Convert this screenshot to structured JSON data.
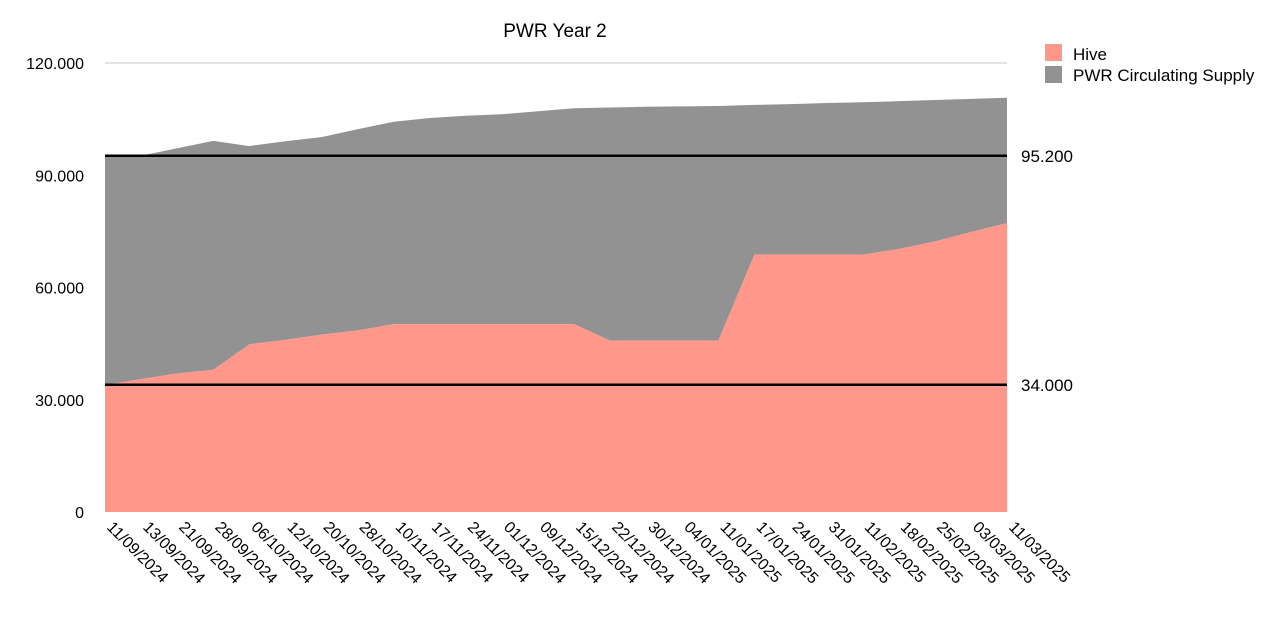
{
  "chart_data": {
    "type": "area",
    "stacked": true,
    "title": "PWR Year 2",
    "xlabel": "",
    "ylabel": "",
    "ylim": [
      0,
      120000
    ],
    "yticks": [
      0,
      30000,
      60000,
      90000,
      120000
    ],
    "ytick_labels": [
      "0",
      "30.000",
      "60.000",
      "90.000",
      "120.000"
    ],
    "x": [
      "11/09/2024",
      "13/09/2024",
      "21/09/2024",
      "28/09/2024",
      "06/10/2024",
      "12/10/2024",
      "20/10/2024",
      "28/10/2024",
      "10/11/2024",
      "17/11/2024",
      "24/11/2024",
      "01/12/2024",
      "09/12/2024",
      "15/12/2024",
      "22/12/2024",
      "30/12/2024",
      "04/01/2025",
      "11/01/2025",
      "17/01/2025",
      "24/01/2025",
      "31/01/2025",
      "11/02/2025",
      "18/02/2025",
      "25/02/2025",
      "03/03/2025",
      "11/03/2025"
    ],
    "series": [
      {
        "name": "Hive",
        "color": "#ff978a",
        "values": [
          34000,
          35500,
          37000,
          38000,
          44800,
          46000,
          47400,
          48500,
          50200,
          50200,
          50200,
          50200,
          50200,
          50200,
          45800,
          45800,
          45800,
          45800,
          68800,
          68800,
          68800,
          68800,
          70300,
          72300,
          74800,
          77200
        ]
      },
      {
        "name": "PWR Circulating Supply",
        "color": "#929292",
        "totals": [
          95200,
          95200,
          97200,
          99200,
          97800,
          99100,
          100200,
          102300,
          104300,
          105300,
          105900,
          106300,
          107100,
          107900,
          108100,
          108300,
          108400,
          108500,
          108800,
          109000,
          109300,
          109500,
          109800,
          110100,
          110400,
          110700
        ]
      }
    ],
    "reference_lines": [
      {
        "value": 95200,
        "label": "95.200",
        "color": "#000000"
      },
      {
        "value": 34000,
        "label": "34.000",
        "color": "#000000"
      }
    ],
    "grid": "horizontal-top",
    "legend_position": "top-right"
  }
}
